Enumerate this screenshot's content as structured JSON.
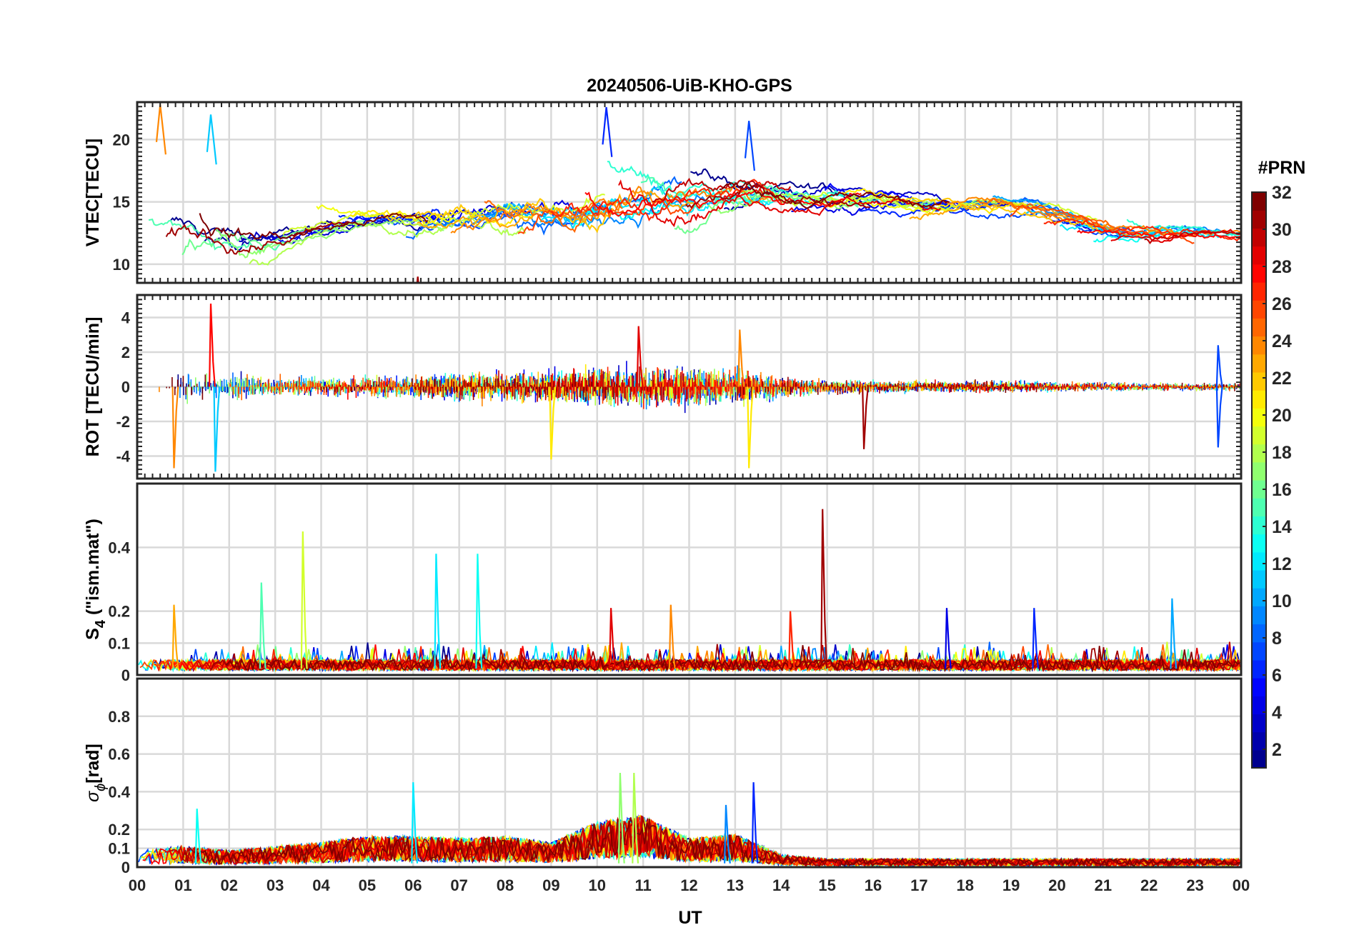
{
  "figure": {
    "title": "20240506-UiB-KHO-GPS",
    "xlabel": "UT"
  },
  "colorbar": {
    "title": "#PRN",
    "range": [
      1,
      32
    ],
    "tick_labels": [
      "2",
      "4",
      "6",
      "8",
      "10",
      "12",
      "14",
      "16",
      "18",
      "20",
      "22",
      "24",
      "26",
      "28",
      "30",
      "32"
    ],
    "colormap": "jet",
    "stops": [
      "#00008f",
      "#0000ff",
      "#007fff",
      "#00ffff",
      "#7fff7f",
      "#ffff00",
      "#ff7f00",
      "#ff0000",
      "#7f0000"
    ]
  },
  "chart_data": [
    {
      "type": "line",
      "name": "vtec",
      "ylabel": "VTEC[TECU]",
      "xlim": [
        0,
        24
      ],
      "ylim": [
        8.5,
        23
      ],
      "yticks": [
        10,
        15,
        20
      ],
      "ytick_labels": [
        "10",
        "15",
        "20"
      ],
      "x_tick_labels": [
        "00",
        "01",
        "02",
        "03",
        "04",
        "05",
        "06",
        "07",
        "08",
        "09",
        "10",
        "11",
        "12",
        "13",
        "14",
        "15",
        "16",
        "17",
        "18",
        "19",
        "20",
        "21",
        "22",
        "23",
        "00"
      ],
      "grid": true,
      "series_note": "one trace per satellite PRN 1-32, coloured by PRN",
      "envelope_x": [
        0,
        1,
        2,
        3,
        4,
        5,
        6,
        7,
        8,
        9,
        10,
        11,
        12,
        13,
        14,
        15,
        16,
        17,
        18,
        19,
        20,
        21,
        22,
        23,
        24
      ],
      "envelope_mean": [
        12,
        12,
        11.5,
        12.5,
        13.5,
        14,
        13.5,
        14,
        14,
        14,
        15,
        15.5,
        15.5,
        16,
        15,
        15.5,
        15,
        14.5,
        15,
        14.5,
        13,
        12.5,
        12.5,
        12.5,
        12
      ],
      "envelope_spread": [
        3,
        3.5,
        3,
        2,
        1.5,
        1.5,
        2,
        2.5,
        3,
        3,
        3.5,
        3.5,
        3,
        2.5,
        2,
        2,
        1.5,
        1.5,
        1.5,
        1.5,
        1.5,
        1.5,
        1.5,
        1.5,
        1
      ],
      "peaks": [
        {
          "x": 0.5,
          "y": 22.8,
          "prn": 24
        },
        {
          "x": 1.6,
          "y": 22,
          "prn": 11
        },
        {
          "x": 10.2,
          "y": 22.6,
          "prn": 6
        },
        {
          "x": 13.3,
          "y": 21.5,
          "prn": 7
        },
        {
          "x": 6.1,
          "y": 9,
          "prn": 31
        }
      ]
    },
    {
      "type": "line",
      "name": "rot",
      "ylabel": "ROT [TECU/min]",
      "xlim": [
        0,
        24
      ],
      "ylim": [
        -5.3,
        5.3
      ],
      "yticks": [
        -4,
        -2,
        0,
        2,
        4
      ],
      "ytick_labels": [
        "-4",
        "-2",
        "0",
        "2",
        "4"
      ],
      "grid": true,
      "series_note": "one trace per satellite PRN 1-32, coloured by PRN",
      "envelope_x": [
        0,
        1,
        2,
        3,
        4,
        5,
        6,
        7,
        8,
        9,
        10,
        11,
        12,
        13,
        14,
        15,
        16,
        17,
        18,
        19,
        20,
        21,
        22,
        23,
        24
      ],
      "envelope_mean": [
        0,
        0,
        0,
        0,
        0,
        0,
        0,
        0,
        0,
        0,
        0,
        0,
        0,
        0,
        0,
        0,
        0,
        0,
        0,
        0,
        0,
        0,
        0,
        0,
        0
      ],
      "envelope_spread": [
        1.5,
        1.5,
        1.2,
        0.8,
        0.8,
        0.9,
        0.9,
        1.2,
        1.2,
        1.3,
        1.6,
        1.6,
        1.6,
        1.6,
        0.9,
        0.6,
        0.5,
        0.5,
        0.5,
        0.5,
        0.4,
        0.35,
        0.3,
        0.3,
        0.3
      ],
      "peaks": [
        {
          "x": 1.6,
          "y": 4.8,
          "prn": 28
        },
        {
          "x": 1.7,
          "y": -4.9,
          "prn": 11
        },
        {
          "x": 0.8,
          "y": -4.7,
          "prn": 24
        },
        {
          "x": 9.0,
          "y": -4.2,
          "prn": 21
        },
        {
          "x": 10.9,
          "y": 3.5,
          "prn": 29
        },
        {
          "x": 13.1,
          "y": 3.3,
          "prn": 24
        },
        {
          "x": 13.3,
          "y": -4.7,
          "prn": 21
        },
        {
          "x": 15.8,
          "y": -3.6,
          "prn": 31
        },
        {
          "x": 23.5,
          "y": 2.4,
          "prn": 7
        },
        {
          "x": 23.5,
          "y": -3.5,
          "prn": 7
        }
      ]
    },
    {
      "type": "line",
      "name": "s4",
      "ylabel_main": "S",
      "ylabel_sub": "4",
      "ylabel_rest": " (\"ism.mat\")",
      "xlim": [
        0,
        24
      ],
      "ylim": [
        0,
        0.6
      ],
      "yticks": [
        0,
        0.1,
        0.2,
        0.4
      ],
      "ytick_labels": [
        "0",
        "0.1",
        "0.2",
        "0.4"
      ],
      "grid": true,
      "series_note": "one trace per satellite PRN 1-32, coloured by PRN",
      "baseline": 0.03,
      "peaks": [
        {
          "x": 14.9,
          "y": 0.52,
          "prn": 31
        },
        {
          "x": 3.6,
          "y": 0.45,
          "prn": 19
        },
        {
          "x": 6.5,
          "y": 0.38,
          "prn": 12
        },
        {
          "x": 7.4,
          "y": 0.38,
          "prn": 13
        },
        {
          "x": 2.7,
          "y": 0.29,
          "prn": 15
        },
        {
          "x": 0.8,
          "y": 0.22,
          "prn": 23
        },
        {
          "x": 10.3,
          "y": 0.21,
          "prn": 29
        },
        {
          "x": 11.6,
          "y": 0.22,
          "prn": 24
        },
        {
          "x": 14.2,
          "y": 0.2,
          "prn": 27
        },
        {
          "x": 17.6,
          "y": 0.21,
          "prn": 4
        },
        {
          "x": 19.5,
          "y": 0.21,
          "prn": 6
        },
        {
          "x": 22.5,
          "y": 0.24,
          "prn": 10
        }
      ]
    },
    {
      "type": "line",
      "name": "sigma_phi",
      "ylabel_main": "σ",
      "ylabel_sub": "ϕ",
      "ylabel_rest": "[rad]",
      "xlim": [
        0,
        24
      ],
      "ylim": [
        0,
        1
      ],
      "yticks": [
        0,
        0.1,
        0.2,
        0.4,
        0.6,
        0.8
      ],
      "ytick_labels": [
        "0",
        "0.1",
        "0.2",
        "0.4",
        "0.6",
        "0.8"
      ],
      "grid": true,
      "series_note": "one trace per satellite PRN 1-32, coloured by PRN",
      "envelope_x": [
        0,
        1,
        2,
        3,
        4,
        5,
        6,
        7,
        8,
        9,
        10,
        11,
        12,
        13,
        14,
        15,
        16,
        17,
        18,
        19,
        20,
        21,
        22,
        23,
        24
      ],
      "envelope_level": [
        0.08,
        0.1,
        0.08,
        0.1,
        0.12,
        0.15,
        0.15,
        0.14,
        0.15,
        0.12,
        0.22,
        0.25,
        0.14,
        0.16,
        0.06,
        0.04,
        0.04,
        0.04,
        0.04,
        0.04,
        0.04,
        0.04,
        0.04,
        0.04,
        0.04
      ],
      "peaks": [
        {
          "x": 1.3,
          "y": 0.31,
          "prn": 13
        },
        {
          "x": 6.0,
          "y": 0.45,
          "prn": 12
        },
        {
          "x": 10.5,
          "y": 0.5,
          "prn": 17
        },
        {
          "x": 10.8,
          "y": 0.5,
          "prn": 18
        },
        {
          "x": 12.8,
          "y": 0.33,
          "prn": 9
        },
        {
          "x": 13.4,
          "y": 0.45,
          "prn": 6
        }
      ]
    }
  ]
}
